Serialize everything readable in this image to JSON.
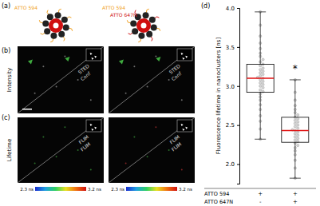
{
  "panels": {
    "labels": [
      "(a)",
      "(b)",
      "(c)",
      "(d)"
    ]
  },
  "schematic": {
    "left": [
      {
        "text": "ATTO 594",
        "color": "#f0a020"
      }
    ],
    "right": [
      {
        "text": "ATTO 594",
        "color": "#f0a020"
      },
      {
        "text": "ATTO 647N",
        "color": "#d01010"
      }
    ]
  },
  "images": {
    "row_labels": [
      "Intensity",
      "Lifetime"
    ],
    "intensity_split": [
      "STED",
      "Conf"
    ],
    "lifetime_split": [
      "FLIM",
      "FLIM"
    ],
    "colorbar": {
      "range": [
        2.3,
        3.2
      ],
      "ticks": [
        {
          "value": 2.3,
          "label": "2.3 ns"
        },
        {
          "value": 3.2,
          "label": "3.2 ns"
        }
      ]
    }
  },
  "chart_data": {
    "type": "box",
    "y_label": "Fluorescence lifetime in nanoclusters [ns]",
    "ylim": [
      1.75,
      4.0
    ],
    "yticks": [
      {
        "value": 2.0,
        "label": "2.0"
      },
      {
        "value": 2.5,
        "label": "2.5"
      },
      {
        "value": 3.0,
        "label": "3.0"
      },
      {
        "value": 3.5,
        "label": "3.5"
      },
      {
        "value": 4.0,
        "label": "4.0"
      }
    ],
    "boxes": [
      {
        "whisker_low": 2.32,
        "q1": 2.92,
        "median": 3.1,
        "q3": 3.28,
        "whisker_high": 3.95,
        "points": [
          2.32,
          2.45,
          2.55,
          2.62,
          2.7,
          2.76,
          2.82,
          2.86,
          2.9,
          2.93,
          2.95,
          2.98,
          3.0,
          3.02,
          3.04,
          3.06,
          3.08,
          3.1,
          3.11,
          3.13,
          3.15,
          3.17,
          3.19,
          3.21,
          3.23,
          3.26,
          3.28,
          3.31,
          3.34,
          3.38,
          3.42,
          3.48,
          3.55,
          3.64,
          3.78,
          3.95
        ]
      },
      {
        "whisker_low": 1.82,
        "q1": 2.28,
        "median": 2.43,
        "q3": 2.6,
        "whisker_high": 3.08,
        "points": [
          1.82,
          1.95,
          2.05,
          2.12,
          2.17,
          2.21,
          2.24,
          2.27,
          2.29,
          2.31,
          2.33,
          2.35,
          2.37,
          2.39,
          2.41,
          2.43,
          2.44,
          2.46,
          2.48,
          2.5,
          2.52,
          2.54,
          2.56,
          2.58,
          2.6,
          2.63,
          2.66,
          2.7,
          2.75,
          2.82,
          2.92,
          3.08
        ]
      }
    ],
    "annotations": [
      {
        "text": "*",
        "box": 1,
        "value": 3.24
      }
    ],
    "conditions": [
      {
        "name": "ATTO 594",
        "marks": [
          "+",
          "+"
        ]
      },
      {
        "name": "ATTO 647N",
        "marks": [
          "-",
          "+"
        ]
      }
    ]
  }
}
